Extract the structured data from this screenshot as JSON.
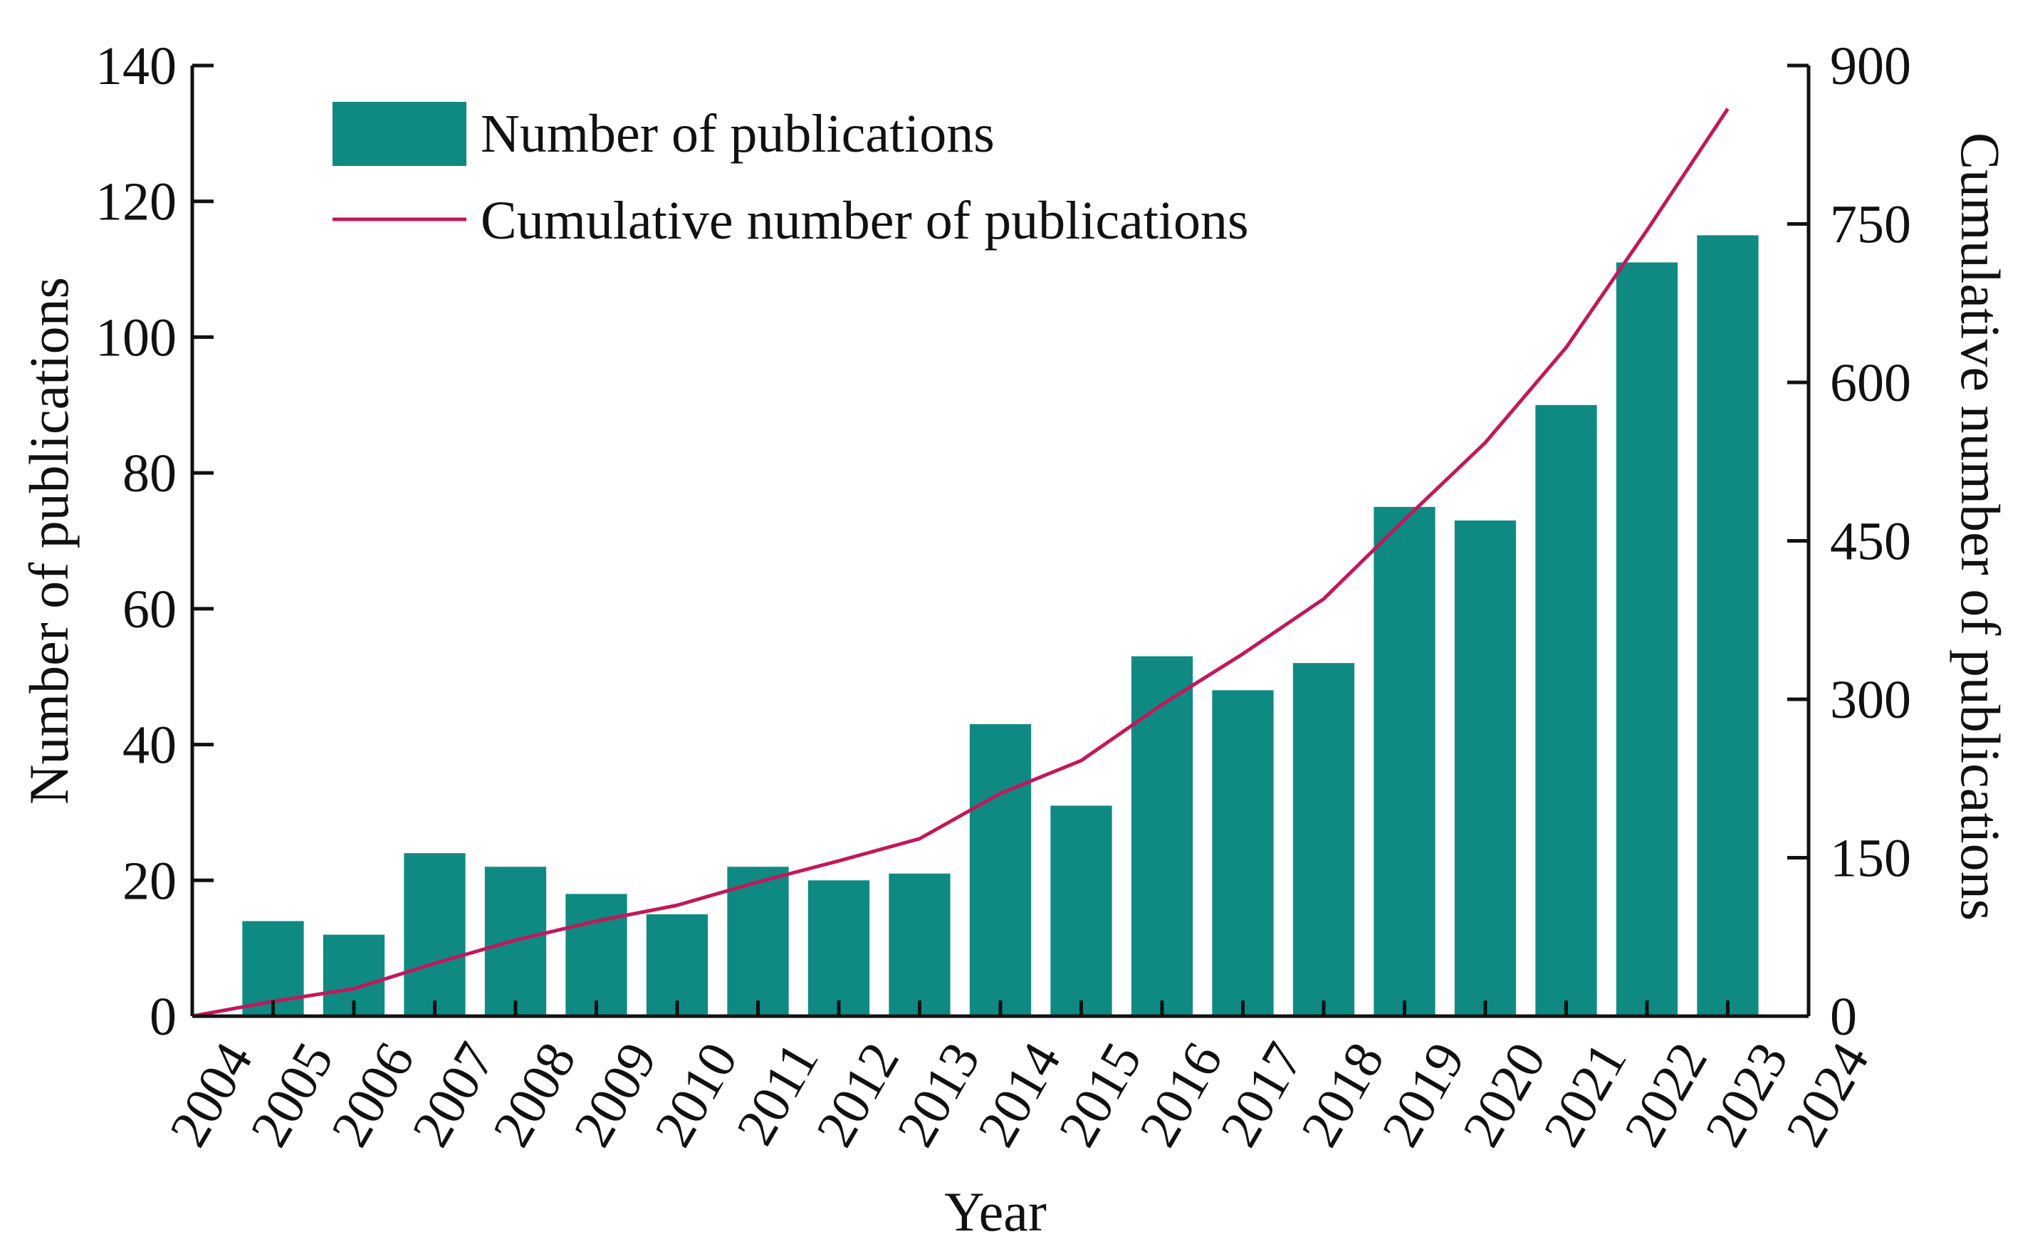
{
  "chart_data": {
    "type": "bar",
    "title": "",
    "xlabel": "Year",
    "ylabel": "Number of publications",
    "y2label": "Cumulative number of publications",
    "x_ticks": [
      "2004",
      "2005",
      "2006",
      "2007",
      "2008",
      "2009",
      "2010",
      "2011",
      "2012",
      "2013",
      "2014",
      "2015",
      "2016",
      "2017",
      "2018",
      "2019",
      "2020",
      "2021",
      "2022",
      "2023",
      "2024"
    ],
    "categories": [
      "2005",
      "2006",
      "2007",
      "2008",
      "2009",
      "2010",
      "2011",
      "2012",
      "2013",
      "2014",
      "2015",
      "2016",
      "2017",
      "2018",
      "2019",
      "2020",
      "2021",
      "2022",
      "2023"
    ],
    "ylim": [
      0,
      140
    ],
    "y_ticks": [
      0,
      20,
      40,
      60,
      80,
      100,
      120,
      140
    ],
    "y2lim": [
      0,
      900
    ],
    "y2_ticks": [
      0,
      150,
      300,
      450,
      600,
      750,
      900
    ],
    "series": [
      {
        "name": "Number of publications",
        "type": "bar",
        "axis": "left",
        "color": "#0e8a83",
        "values": [
          14,
          12,
          24,
          22,
          18,
          15,
          22,
          20,
          21,
          43,
          31,
          53,
          48,
          52,
          75,
          73,
          90,
          111,
          115
        ]
      },
      {
        "name": "Cumulative number of publications",
        "type": "line",
        "axis": "right",
        "color": "#c2185b",
        "x": [
          "2004",
          "2005",
          "2006",
          "2007",
          "2008",
          "2009",
          "2010",
          "2011",
          "2012",
          "2013",
          "2014",
          "2015",
          "2016",
          "2017",
          "2018",
          "2019",
          "2020",
          "2021",
          "2022",
          "2023"
        ],
        "values": [
          0,
          14,
          26,
          50,
          72,
          90,
          105,
          127,
          147,
          168,
          211,
          242,
          295,
          343,
          395,
          470,
          543,
          633,
          744,
          859
        ]
      }
    ],
    "legend_position": "top-left",
    "grid": false
  }
}
